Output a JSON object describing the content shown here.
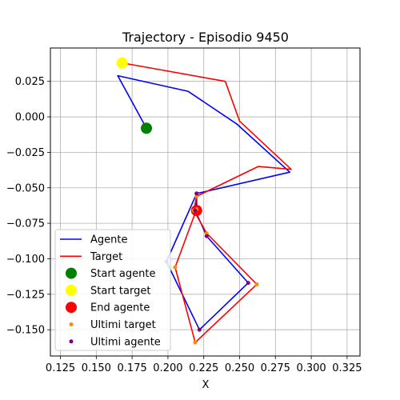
{
  "chart_data": {
    "type": "line",
    "title": "Trajectory - Episodio 9450",
    "xlabel": "X",
    "ylabel": "",
    "xlim": [
      0.118,
      0.334
    ],
    "ylim": [
      -0.1685,
      0.0485
    ],
    "xticks": [
      0.125,
      0.15,
      0.175,
      0.2,
      0.225,
      0.25,
      0.275,
      0.3,
      0.325
    ],
    "xtick_labels": [
      "0.125",
      "0.150",
      "0.175",
      "0.200",
      "0.225",
      "0.250",
      "0.275",
      "0.300",
      "0.325"
    ],
    "yticks": [
      0.025,
      0.0,
      -0.025,
      -0.05,
      -0.075,
      -0.1,
      -0.125,
      -0.15
    ],
    "ytick_labels": [
      "0.025",
      "0.000",
      "−0.025",
      "−0.050",
      "−0.075",
      "−0.100",
      "−0.125",
      "−0.150"
    ],
    "grid": true,
    "legend_position": "lower-left",
    "series": [
      {
        "name": "Agente",
        "kind": "line",
        "color": "#0000ff",
        "x": [
          0.185,
          0.165,
          0.214,
          0.248,
          0.285,
          0.22,
          0.219,
          0.227,
          0.256,
          0.222,
          0.199,
          0.22,
          0.22
        ],
        "y": [
          -0.008,
          0.029,
          0.018,
          -0.005,
          -0.039,
          -0.054,
          -0.066,
          -0.084,
          -0.117,
          -0.15,
          -0.102,
          -0.054,
          -0.066
        ]
      },
      {
        "name": "Target",
        "kind": "line",
        "color": "#ff0000",
        "x": [
          0.168,
          0.24,
          0.25,
          0.286,
          0.263,
          0.22,
          0.218,
          0.227,
          0.262,
          0.219,
          0.205,
          0.22,
          0.22
        ],
        "y": [
          0.038,
          0.025,
          -0.003,
          -0.037,
          -0.035,
          -0.056,
          -0.066,
          -0.082,
          -0.118,
          -0.159,
          -0.106,
          -0.065,
          -0.065
        ]
      },
      {
        "name": "Start agente",
        "kind": "marker",
        "color": "#008000",
        "size": 7,
        "x": [
          0.185
        ],
        "y": [
          -0.008
        ]
      },
      {
        "name": "Start target",
        "kind": "marker",
        "color": "#ffff00",
        "size": 7,
        "x": [
          0.168
        ],
        "y": [
          0.038
        ]
      },
      {
        "name": "End agente",
        "kind": "marker",
        "color": "#ff0000",
        "size": 7,
        "x": [
          0.22
        ],
        "y": [
          -0.066
        ]
      },
      {
        "name": "Ultimi target",
        "kind": "marker",
        "color": "#ff8c00",
        "size": 2.5,
        "x": [
          0.22,
          0.218,
          0.227,
          0.262,
          0.219,
          0.205,
          0.22
        ],
        "y": [
          -0.056,
          -0.066,
          -0.082,
          -0.118,
          -0.159,
          -0.106,
          -0.065
        ]
      },
      {
        "name": "Ultimi agente",
        "kind": "marker",
        "color": "#800080",
        "size": 2.5,
        "x": [
          0.22,
          0.219,
          0.227,
          0.256,
          0.222,
          0.199,
          0.22
        ],
        "y": [
          -0.054,
          -0.066,
          -0.084,
          -0.117,
          -0.15,
          -0.102,
          -0.054
        ]
      }
    ]
  }
}
